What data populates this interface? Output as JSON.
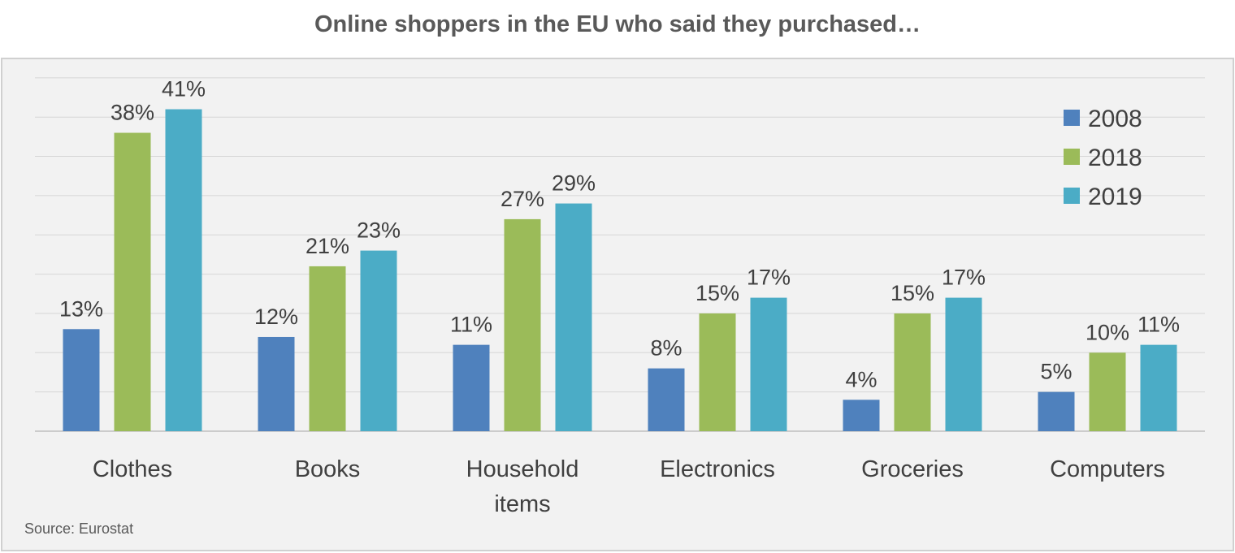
{
  "chart_data": {
    "type": "bar",
    "title": "Online shoppers in the EU who said they purchased…",
    "categories": [
      [
        "Clothes"
      ],
      [
        "Books"
      ],
      [
        "Household",
        "items"
      ],
      [
        "Electronics"
      ],
      [
        "Groceries"
      ],
      [
        "Computers"
      ]
    ],
    "series": [
      {
        "name": "2008",
        "color": "#4f81bd",
        "values": [
          13,
          12,
          11,
          8,
          4,
          5
        ],
        "labels": [
          "13%",
          "12%",
          "11%",
          "8%",
          "4%",
          "5%"
        ]
      },
      {
        "name": "2018",
        "color": "#9bbb59",
        "values": [
          38,
          21,
          27,
          15,
          15,
          10
        ],
        "labels": [
          "38%",
          "21%",
          "27%",
          "15%",
          "15%",
          "10%"
        ]
      },
      {
        "name": "2019",
        "color": "#4bacc6",
        "values": [
          41,
          23,
          29,
          17,
          17,
          11
        ],
        "labels": [
          "41%",
          "23%",
          "29%",
          "17%",
          "17%",
          "11%"
        ]
      }
    ],
    "ylim": [
      0,
      45
    ],
    "grid": true,
    "legend": "top-right",
    "source": "Source: Eurostat"
  }
}
